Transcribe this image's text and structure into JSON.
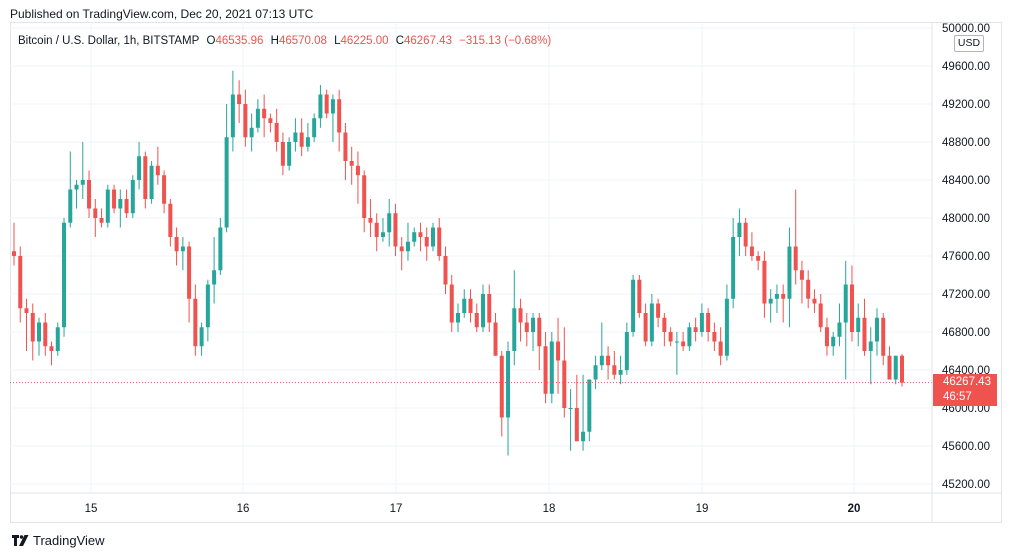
{
  "published": "Published on TradingView.com, Dec 20, 2021 07:13 UTC",
  "legend": {
    "symbol": "Bitcoin / U.S. Dollar, 1h, BITSTAMP",
    "open_label": "O",
    "open": "46535.96",
    "high_label": "H",
    "high": "46570.08",
    "low_label": "L",
    "low": "46225.00",
    "close_label": "C",
    "close": "46267.43",
    "change": "−315.13 (−0.68%)"
  },
  "currency": "USD",
  "last_price": {
    "price": "46267.43",
    "countdown": "46:57"
  },
  "footer": {
    "brand": "TradingView",
    "logo": "tradingview-logo-icon"
  },
  "colors": {
    "up": "#26a69a",
    "down": "#ef5350",
    "grid": "#f0f3fa",
    "axis_text": "#131722"
  },
  "chart_data": {
    "type": "candlestick",
    "x_axis": {
      "tick_labels": [
        "15",
        "16",
        "17",
        "18",
        "19",
        "20"
      ]
    },
    "y_axis": {
      "range": [
        45000,
        50000
      ],
      "tick_values": [
        45200,
        45600,
        46000,
        46400,
        46800,
        47200,
        47600,
        48000,
        48400,
        48800,
        49200,
        49600,
        50000
      ],
      "tick_labels": [
        "45200.00",
        "45600.00",
        "46000.00",
        "46400.00",
        "46800.00",
        "47200.00",
        "47600.00",
        "48000.00",
        "48400.00",
        "48800.00",
        "49200.00",
        "49600.00",
        "50000.00"
      ]
    },
    "grid": true,
    "last_price_line": 46267.43,
    "candles_ohlc": [
      [
        47650,
        47950,
        47500,
        47600
      ],
      [
        47600,
        47700,
        46900,
        47050
      ],
      [
        47050,
        47150,
        46600,
        47000
      ],
      [
        47000,
        47100,
        46500,
        46700
      ],
      [
        46700,
        46950,
        46550,
        46900
      ],
      [
        46900,
        47000,
        46550,
        46650
      ],
      [
        46650,
        46700,
        46450,
        46600
      ],
      [
        46600,
        46900,
        46550,
        46850
      ],
      [
        46850,
        48000,
        46750,
        47950
      ],
      [
        47950,
        48700,
        47900,
        48300
      ],
      [
        48300,
        48400,
        48100,
        48350
      ],
      [
        48350,
        48800,
        48200,
        48400
      ],
      [
        48400,
        48500,
        48000,
        48100
      ],
      [
        48100,
        48200,
        47800,
        48000
      ],
      [
        48000,
        48100,
        47900,
        47950
      ],
      [
        47950,
        48350,
        47900,
        48300
      ],
      [
        48300,
        48350,
        48050,
        48100
      ],
      [
        48100,
        48300,
        47900,
        48200
      ],
      [
        48200,
        48300,
        48000,
        48050
      ],
      [
        48050,
        48450,
        48000,
        48400
      ],
      [
        48400,
        48800,
        48300,
        48650
      ],
      [
        48650,
        48700,
        48100,
        48200
      ],
      [
        48200,
        48600,
        48150,
        48550
      ],
      [
        48550,
        48750,
        48350,
        48450
      ],
      [
        48450,
        48500,
        48050,
        48150
      ],
      [
        48150,
        48200,
        47700,
        47800
      ],
      [
        47800,
        47900,
        47500,
        47650
      ],
      [
        47650,
        47800,
        47450,
        47700
      ],
      [
        47700,
        47750,
        46900,
        47150
      ],
      [
        47150,
        47300,
        46550,
        46650
      ],
      [
        46650,
        46900,
        46550,
        46850
      ],
      [
        46850,
        47350,
        46700,
        47300
      ],
      [
        47300,
        47800,
        47100,
        47450
      ],
      [
        47450,
        48000,
        47400,
        47900
      ],
      [
        47900,
        49200,
        47850,
        48850
      ],
      [
        48850,
        49550,
        48700,
        49300
      ],
      [
        49300,
        49450,
        49000,
        49200
      ],
      [
        49200,
        49350,
        48750,
        48850
      ],
      [
        48850,
        49100,
        48700,
        48950
      ],
      [
        48950,
        49250,
        48900,
        49150
      ],
      [
        49150,
        49300,
        48850,
        49050
      ],
      [
        49050,
        49100,
        48900,
        49000
      ],
      [
        49000,
        49150,
        48700,
        48800
      ],
      [
        48800,
        48900,
        48450,
        48550
      ],
      [
        48550,
        48850,
        48500,
        48800
      ],
      [
        48800,
        49050,
        48700,
        48900
      ],
      [
        48900,
        49050,
        48650,
        48750
      ],
      [
        48750,
        49000,
        48700,
        48850
      ],
      [
        48850,
        49100,
        48800,
        49050
      ],
      [
        49050,
        49400,
        48950,
        49300
      ],
      [
        49300,
        49350,
        49050,
        49100
      ],
      [
        49100,
        49300,
        48800,
        49250
      ],
      [
        49250,
        49350,
        48700,
        48900
      ],
      [
        48900,
        49000,
        48400,
        48600
      ],
      [
        48600,
        48750,
        48350,
        48550
      ],
      [
        48550,
        48700,
        48150,
        48450
      ],
      [
        48450,
        48500,
        47850,
        48000
      ],
      [
        48000,
        48200,
        47800,
        47950
      ],
      [
        47950,
        48050,
        47650,
        47800
      ],
      [
        47800,
        48000,
        47750,
        47850
      ],
      [
        47850,
        48200,
        47700,
        48050
      ],
      [
        48050,
        48150,
        47600,
        47700
      ],
      [
        47700,
        47800,
        47450,
        47650
      ],
      [
        47650,
        47950,
        47550,
        47750
      ],
      [
        47750,
        47900,
        47700,
        47850
      ],
      [
        47850,
        47950,
        47650,
        47800
      ],
      [
        47800,
        47900,
        47550,
        47700
      ],
      [
        47700,
        47950,
        47650,
        47900
      ],
      [
        47900,
        48000,
        47550,
        47600
      ],
      [
        47600,
        47700,
        47200,
        47300
      ],
      [
        47300,
        47400,
        46800,
        46900
      ],
      [
        46900,
        47100,
        46800,
        47000
      ],
      [
        47000,
        47250,
        46950,
        47150
      ],
      [
        47150,
        47250,
        46900,
        47000
      ],
      [
        47000,
        47100,
        46800,
        46850
      ],
      [
        46850,
        47300,
        46800,
        47200
      ],
      [
        47200,
        47300,
        46800,
        46900
      ],
      [
        46900,
        47000,
        46550,
        46550
      ],
      [
        46550,
        46600,
        45700,
        45900
      ],
      [
        45900,
        46700,
        45500,
        46600
      ],
      [
        46600,
        47450,
        46450,
        47050
      ],
      [
        47050,
        47150,
        46700,
        46900
      ],
      [
        46900,
        47000,
        46650,
        46800
      ],
      [
        46800,
        47000,
        46600,
        46950
      ],
      [
        46950,
        47000,
        46400,
        46650
      ],
      [
        46650,
        46800,
        46050,
        46150
      ],
      [
        46150,
        46800,
        46050,
        46700
      ],
      [
        46700,
        46950,
        46150,
        46500
      ],
      [
        46500,
        46850,
        45900,
        46000
      ],
      [
        46000,
        46200,
        45550,
        46000
      ],
      [
        46000,
        46350,
        45650,
        45650
      ],
      [
        45650,
        46350,
        45550,
        45750
      ],
      [
        45750,
        46100,
        45650,
        46300
      ],
      [
        46300,
        46550,
        46200,
        46450
      ],
      [
        46450,
        46900,
        46400,
        46550
      ],
      [
        46550,
        46650,
        46300,
        46450
      ],
      [
        46450,
        46600,
        46300,
        46350
      ],
      [
        46350,
        46550,
        46250,
        46400
      ],
      [
        46400,
        46900,
        46350,
        46800
      ],
      [
        46800,
        47400,
        46750,
        47350
      ],
      [
        47350,
        47400,
        46950,
        47000
      ],
      [
        47000,
        47100,
        46650,
        46700
      ],
      [
        46700,
        47200,
        46650,
        47100
      ],
      [
        47100,
        47150,
        46850,
        46950
      ],
      [
        46950,
        47000,
        46650,
        46800
      ],
      [
        46800,
        46850,
        46650,
        46700
      ],
      [
        46700,
        46800,
        46350,
        46700
      ],
      [
        46700,
        46800,
        46600,
        46650
      ],
      [
        46650,
        46900,
        46600,
        46850
      ],
      [
        46850,
        46950,
        46700,
        46800
      ],
      [
        46800,
        47100,
        46750,
        47000
      ],
      [
        47000,
        47050,
        46700,
        46800
      ],
      [
        46800,
        46900,
        46600,
        46700
      ],
      [
        46700,
        46850,
        46450,
        46550
      ],
      [
        46550,
        47300,
        46500,
        47150
      ],
      [
        47150,
        48000,
        47050,
        47800
      ],
      [
        47800,
        48100,
        47600,
        47950
      ],
      [
        47950,
        48000,
        47600,
        47700
      ],
      [
        47700,
        47850,
        47550,
        47600
      ],
      [
        47600,
        47650,
        47450,
        47550
      ],
      [
        47550,
        47650,
        46950,
        47100
      ],
      [
        47100,
        47250,
        46900,
        47150
      ],
      [
        47150,
        47300,
        47000,
        47200
      ],
      [
        47200,
        47300,
        46900,
        47150
      ],
      [
        47150,
        47900,
        46850,
        47700
      ],
      [
        47700,
        48300,
        47300,
        47450
      ],
      [
        47450,
        47550,
        47100,
        47350
      ],
      [
        47350,
        47450,
        47050,
        47150
      ],
      [
        47150,
        47250,
        47000,
        47100
      ],
      [
        47100,
        47200,
        46800,
        46850
      ],
      [
        46850,
        46950,
        46550,
        46650
      ],
      [
        46650,
        46800,
        46550,
        46750
      ],
      [
        46750,
        47100,
        46650,
        46900
      ],
      [
        46900,
        47550,
        46300,
        47300
      ],
      [
        47300,
        47500,
        46700,
        46800
      ],
      [
        46800,
        47100,
        46650,
        46950
      ],
      [
        46950,
        47150,
        46550,
        46600
      ],
      [
        46600,
        46850,
        46250,
        46700
      ],
      [
        46700,
        47050,
        46550,
        46950
      ],
      [
        46950,
        47000,
        46450,
        46550
      ],
      [
        46550,
        46650,
        46300,
        46300
      ],
      [
        46300,
        46550,
        46250,
        46550
      ],
      [
        46550,
        46570,
        46225,
        46267
      ]
    ]
  }
}
